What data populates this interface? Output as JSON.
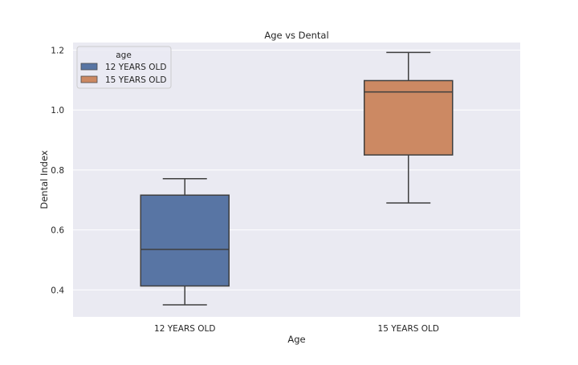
{
  "chart_data": {
    "type": "box",
    "title": "Age vs Dental",
    "xlabel": "Age",
    "ylabel": "Dental Index",
    "ylim": [
      0.31,
      1.225
    ],
    "yticks": [
      0.4,
      0.6,
      0.8,
      1.0,
      1.2
    ],
    "ytick_labels": [
      "0.4",
      "0.6",
      "0.8",
      "1.0",
      "1.2"
    ],
    "grid": true,
    "categories": [
      "12 YEARS OLD",
      "15 YEARS OLD"
    ],
    "series": [
      {
        "name": "12 YEARS OLD",
        "color": "#5875a4",
        "whisker_low": 0.35,
        "q1": 0.413,
        "median": 0.535,
        "q3": 0.716,
        "whisker_high": 0.771
      },
      {
        "name": "15 YEARS OLD",
        "color": "#cc8963",
        "whisker_low": 0.69,
        "q1": 0.85,
        "median": 1.06,
        "q3": 1.098,
        "whisker_high": 1.192
      }
    ],
    "legend": {
      "title": "age",
      "placement": "upper-left"
    }
  }
}
